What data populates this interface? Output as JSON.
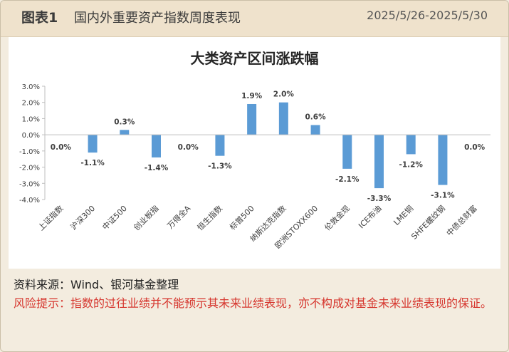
{
  "header": {
    "label": "图表1",
    "title": "国内外重要资产指数周度表现",
    "date_range": "2025/5/26-2025/5/30"
  },
  "footer": {
    "source": "资料来源：Wind、银河基金整理",
    "risk": "风险提示：指数的过往业绩并不能预示其未来业绩表现，亦不构成对基金未来业绩表现的保证。"
  },
  "colors": {
    "bar": "#5b9bd5",
    "risk_text": "#d6362e"
  },
  "chart_data": {
    "type": "bar",
    "title": "大类资产区间涨跌幅",
    "xlabel": "",
    "ylabel": "",
    "ylim": [
      -4.0,
      3.0
    ],
    "yticks": [
      "3.0%",
      "2.0%",
      "1.0%",
      "0.0%",
      "-1.0%",
      "-2.0%",
      "-3.0%",
      "-4.0%"
    ],
    "grid": false,
    "legend": "none",
    "categories": [
      "上证指数",
      "沪深300",
      "中证500",
      "创业板指",
      "万得全A",
      "恒生指数",
      "标普500",
      "纳斯达克指数",
      "欧洲STOXX600",
      "伦敦金现",
      "ICE布油",
      "LME铜",
      "SHFE螺纹钢",
      "中债总财富"
    ],
    "values": [
      0.0,
      -1.1,
      0.3,
      -1.4,
      0.0,
      -1.3,
      1.9,
      2.0,
      0.6,
      -2.1,
      -3.3,
      -1.2,
      -3.1,
      0.0
    ],
    "data_labels": [
      "0.0%",
      "-1.1%",
      "0.3%",
      "-1.4%",
      "0.0%",
      "-1.3%",
      "1.9%",
      "2.0%",
      "0.6%",
      "-2.1%",
      "-3.3%",
      "-1.2%",
      "-3.1%",
      "0.0%"
    ]
  }
}
